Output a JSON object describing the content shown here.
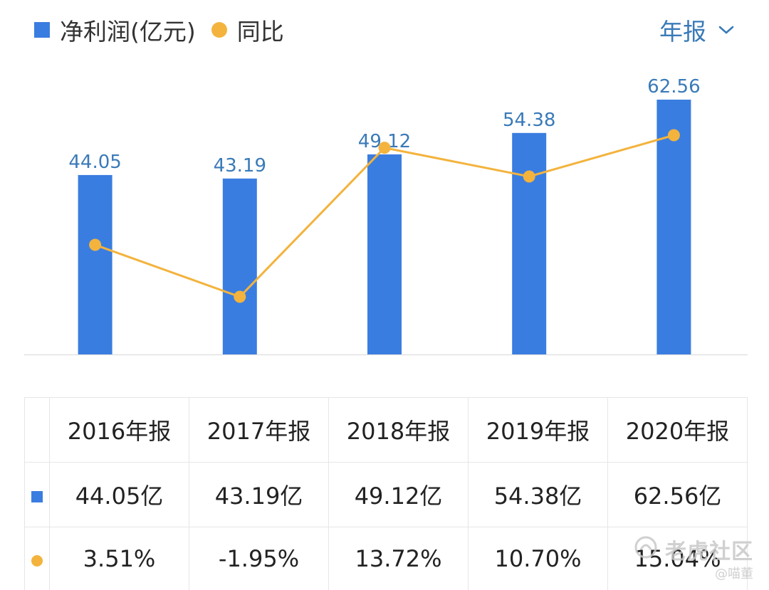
{
  "legend": {
    "bar_label": "净利润(亿元)",
    "line_label": "同比"
  },
  "period_selector": {
    "label": "年报"
  },
  "colors": {
    "bar": "#3a7de0",
    "line": "#f3b33d",
    "value_label": "#3a7ab8",
    "positive": "#d9463a",
    "negative": "#2e9b62"
  },
  "chart_data": {
    "type": "bar",
    "categories": [
      "2016年报",
      "2017年报",
      "2018年报",
      "2019年报",
      "2020年报"
    ],
    "series": [
      {
        "name": "净利润(亿元)",
        "type": "bar",
        "values": [
          44.05,
          43.19,
          49.12,
          54.38,
          62.56
        ],
        "value_labels": [
          "44.05",
          "43.19",
          "49.12",
          "54.38",
          "62.56"
        ]
      },
      {
        "name": "同比",
        "type": "line",
        "values": [
          3.51,
          -1.95,
          13.72,
          10.7,
          15.04
        ]
      }
    ],
    "ylim": [
      0,
      62.56
    ],
    "grid": false,
    "legend": "top-left"
  },
  "table": {
    "headers": [
      "2016年报",
      "2017年报",
      "2018年报",
      "2019年报",
      "2020年报"
    ],
    "profit_row": [
      "44.05亿",
      "43.19亿",
      "49.12亿",
      "54.38亿",
      "62.56亿"
    ],
    "yoy_row": [
      "3.51%",
      "-1.95%",
      "13.72%",
      "10.70%",
      "15.04%"
    ]
  },
  "watermark": {
    "main": "老虎社区",
    "sub": "@喵董"
  }
}
